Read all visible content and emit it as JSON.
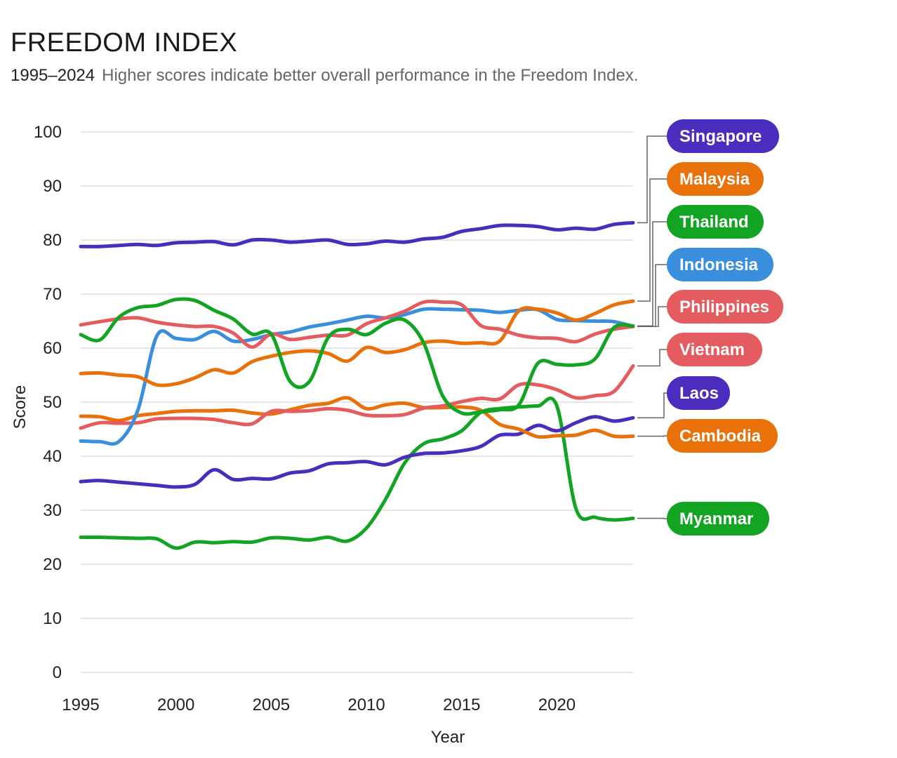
{
  "chart_data": {
    "type": "line",
    "title": "FREEDOM INDEX",
    "subtitle_range": "1995–2024",
    "subtitle_text": "Higher scores indicate better overall performance in the Freedom Index.",
    "xlabel": "Year",
    "ylabel": "Score",
    "xlim": [
      1995,
      2024
    ],
    "ylim": [
      0,
      100
    ],
    "x_ticks": [
      1995,
      2000,
      2005,
      2010,
      2015,
      2020
    ],
    "y_ticks": [
      0,
      10,
      20,
      30,
      40,
      50,
      60,
      70,
      80,
      90,
      100
    ],
    "grid": true,
    "legend": "right, labels at line ends",
    "x": [
      1995,
      1996,
      1997,
      1998,
      1999,
      2000,
      2001,
      2002,
      2003,
      2004,
      2005,
      2006,
      2007,
      2008,
      2009,
      2010,
      2011,
      2012,
      2013,
      2014,
      2015,
      2016,
      2017,
      2018,
      2019,
      2020,
      2021,
      2022,
      2023,
      2024
    ],
    "series": [
      {
        "name": "Singapore",
        "color": "#4b2dbd",
        "values": [
          78.8,
          78.8,
          79.0,
          79.2,
          79.0,
          79.5,
          79.6,
          79.7,
          79.1,
          80.0,
          80.0,
          79.6,
          79.8,
          80.0,
          79.2,
          79.3,
          79.8,
          79.6,
          80.2,
          80.5,
          81.6,
          82.1,
          82.7,
          82.7,
          82.5,
          81.9,
          82.2,
          82.0,
          82.9,
          83.2
        ]
      },
      {
        "name": "Malaysia",
        "color": "#e8710a",
        "values": [
          55.3,
          55.4,
          55.0,
          54.7,
          53.2,
          53.4,
          54.5,
          56.0,
          55.4,
          57.5,
          58.5,
          59.2,
          59.5,
          59.0,
          57.6,
          60.1,
          59.2,
          59.7,
          61.0,
          61.3,
          60.9,
          61.0,
          61.3,
          66.9,
          67.2,
          66.5,
          65.2,
          66.4,
          68.0,
          68.7
        ]
      },
      {
        "name": "Thailand",
        "color": "#12a422",
        "values": [
          62.5,
          61.5,
          65.7,
          67.5,
          67.9,
          69.0,
          68.8,
          67.0,
          65.4,
          62.6,
          62.6,
          53.8,
          53.8,
          62.0,
          63.5,
          62.5,
          64.6,
          65.2,
          61.0,
          51.2,
          48.0,
          48.2,
          48.6,
          49.5,
          57.2,
          57.0,
          56.9,
          58.0,
          63.8,
          64.1
        ]
      },
      {
        "name": "Indonesia",
        "color": "#3a8fdd",
        "values": [
          42.8,
          42.7,
          42.7,
          48.5,
          62.3,
          61.8,
          61.6,
          63.1,
          61.3,
          61.6,
          62.5,
          63.0,
          63.9,
          64.5,
          65.2,
          65.9,
          65.6,
          66.2,
          67.2,
          67.2,
          67.1,
          67.0,
          66.6,
          67.0,
          67.1,
          65.3,
          65.1,
          65.0,
          64.9,
          64.0
        ]
      },
      {
        "name": "Philippines",
        "color": "#e45c5f",
        "values": [
          64.3,
          64.9,
          65.4,
          65.6,
          64.8,
          64.3,
          64.0,
          64.0,
          62.8,
          60.2,
          62.6,
          61.6,
          62.0,
          62.4,
          62.4,
          64.5,
          65.6,
          66.8,
          68.5,
          68.5,
          68.0,
          64.2,
          63.5,
          62.4,
          61.9,
          61.8,
          61.2,
          62.6,
          63.5,
          64.0
        ]
      },
      {
        "name": "Vietnam",
        "color": "#e45c5f",
        "values": [
          45.2,
          46.2,
          46.1,
          46.2,
          46.9,
          47.0,
          47.0,
          46.8,
          46.2,
          46.0,
          48.3,
          48.3,
          48.4,
          48.8,
          48.5,
          47.6,
          47.5,
          47.7,
          48.9,
          49.3,
          50.1,
          50.7,
          50.6,
          53.2,
          53.2,
          52.3,
          50.8,
          51.2,
          52.0,
          56.7
        ]
      },
      {
        "name": "Laos",
        "color": "#4b2dbd",
        "values": [
          35.3,
          35.5,
          35.2,
          34.9,
          34.6,
          34.3,
          34.8,
          37.5,
          35.7,
          35.9,
          35.8,
          36.9,
          37.3,
          38.6,
          38.8,
          39.0,
          38.4,
          39.8,
          40.5,
          40.6,
          41.0,
          41.8,
          43.9,
          44.1,
          45.7,
          44.7,
          46.2,
          47.3,
          46.5,
          47.1
        ]
      },
      {
        "name": "Cambodia",
        "color": "#e8710a",
        "values": [
          47.4,
          47.3,
          46.6,
          47.5,
          47.9,
          48.3,
          48.4,
          48.4,
          48.5,
          48.0,
          47.8,
          48.6,
          49.4,
          49.8,
          50.8,
          48.8,
          49.5,
          49.8,
          49.0,
          49.0,
          49.1,
          48.5,
          45.9,
          45.0,
          43.6,
          43.8,
          43.9,
          44.8,
          43.7,
          43.7
        ]
      },
      {
        "name": "Myanmar",
        "color": "#12a422",
        "values": [
          25.0,
          25.0,
          24.9,
          24.8,
          24.7,
          23.0,
          24.1,
          24.0,
          24.2,
          24.1,
          24.9,
          24.8,
          24.5,
          25.0,
          24.3,
          26.7,
          32.0,
          38.7,
          42.3,
          43.2,
          44.7,
          48.1,
          48.8,
          49.1,
          49.3,
          49.3,
          30.3,
          28.7,
          28.2,
          28.5
        ]
      }
    ],
    "labels": [
      {
        "name": "Singapore",
        "color": "#4b2dbd"
      },
      {
        "name": "Malaysia",
        "color": "#e8710a"
      },
      {
        "name": "Thailand",
        "color": "#12a422"
      },
      {
        "name": "Indonesia",
        "color": "#3a8fdd"
      },
      {
        "name": "Philippines",
        "color": "#e45c5f"
      },
      {
        "name": "Vietnam",
        "color": "#e45c5f"
      },
      {
        "name": "Laos",
        "color": "#4b2dbd"
      },
      {
        "name": "Cambodia",
        "color": "#e8710a"
      },
      {
        "name": "Myanmar",
        "color": "#12a422"
      }
    ]
  }
}
